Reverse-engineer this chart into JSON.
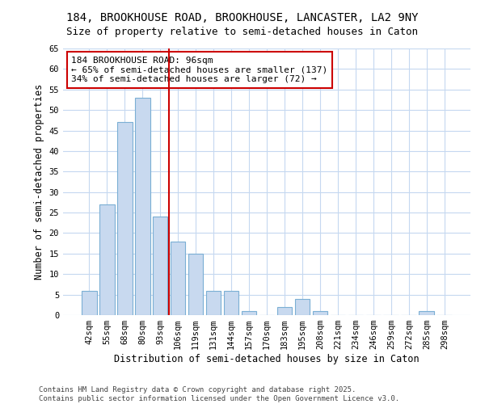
{
  "title": "184, BROOKHOUSE ROAD, BROOKHOUSE, LANCASTER, LA2 9NY",
  "subtitle": "Size of property relative to semi-detached houses in Caton",
  "xlabel": "Distribution of semi-detached houses by size in Caton",
  "ylabel": "Number of semi-detached properties",
  "categories": [
    "42sqm",
    "55sqm",
    "68sqm",
    "80sqm",
    "93sqm",
    "106sqm",
    "119sqm",
    "131sqm",
    "144sqm",
    "157sqm",
    "170sqm",
    "183sqm",
    "195sqm",
    "208sqm",
    "221sqm",
    "234sqm",
    "246sqm",
    "259sqm",
    "272sqm",
    "285sqm",
    "298sqm"
  ],
  "values": [
    6,
    27,
    47,
    53,
    24,
    18,
    15,
    6,
    6,
    1,
    0,
    2,
    4,
    1,
    0,
    0,
    0,
    0,
    0,
    1,
    0
  ],
  "bar_color": "#c8d9ef",
  "bar_edge_color": "#7bafd4",
  "vline_x_idx": 4,
  "vline_color": "#cc0000",
  "annotation_text": "184 BROOKHOUSE ROAD: 96sqm\n← 65% of semi-detached houses are smaller (137)\n34% of semi-detached houses are larger (72) →",
  "annotation_box_color": "#cc0000",
  "ylim": [
    0,
    65
  ],
  "yticks": [
    0,
    5,
    10,
    15,
    20,
    25,
    30,
    35,
    40,
    45,
    50,
    55,
    60,
    65
  ],
  "background_color": "#ffffff",
  "grid_color": "#c5d8f0",
  "footer_text": "Contains HM Land Registry data © Crown copyright and database right 2025.\nContains public sector information licensed under the Open Government Licence v3.0.",
  "title_fontsize": 10,
  "subtitle_fontsize": 9,
  "axis_label_fontsize": 8.5,
  "tick_fontsize": 7.5,
  "annotation_fontsize": 8,
  "footer_fontsize": 6.5
}
